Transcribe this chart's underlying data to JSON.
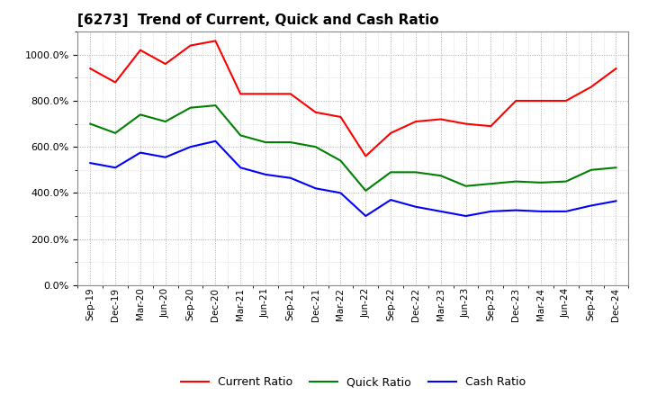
{
  "title": "[6273]  Trend of Current, Quick and Cash Ratio",
  "labels": [
    "Sep-19",
    "Dec-19",
    "Mar-20",
    "Jun-20",
    "Sep-20",
    "Dec-20",
    "Mar-21",
    "Jun-21",
    "Sep-21",
    "Dec-21",
    "Mar-22",
    "Jun-22",
    "Sep-22",
    "Dec-22",
    "Mar-23",
    "Jun-23",
    "Sep-23",
    "Dec-23",
    "Mar-24",
    "Jun-24",
    "Sep-24",
    "Dec-24"
  ],
  "current_ratio": [
    940,
    880,
    1020,
    960,
    1040,
    1060,
    830,
    830,
    830,
    750,
    730,
    560,
    660,
    710,
    720,
    700,
    690,
    800,
    800,
    800,
    860,
    940
  ],
  "quick_ratio": [
    700,
    660,
    740,
    710,
    770,
    780,
    650,
    620,
    620,
    600,
    540,
    410,
    490,
    490,
    475,
    430,
    440,
    450,
    445,
    450,
    500,
    510
  ],
  "cash_ratio": [
    530,
    510,
    575,
    555,
    600,
    625,
    510,
    480,
    465,
    420,
    400,
    300,
    370,
    340,
    320,
    300,
    320,
    325,
    320,
    320,
    345,
    365
  ],
  "current_color": "#FF0000",
  "quick_color": "#008000",
  "cash_color": "#0000FF",
  "ylim_max": 1100,
  "yticks": [
    0,
    200,
    400,
    600,
    800,
    1000
  ],
  "background_color": "#FFFFFF",
  "plot_bg_color": "#FFFFFF",
  "grid_color": "#AAAAAA",
  "title_fontsize": 11
}
